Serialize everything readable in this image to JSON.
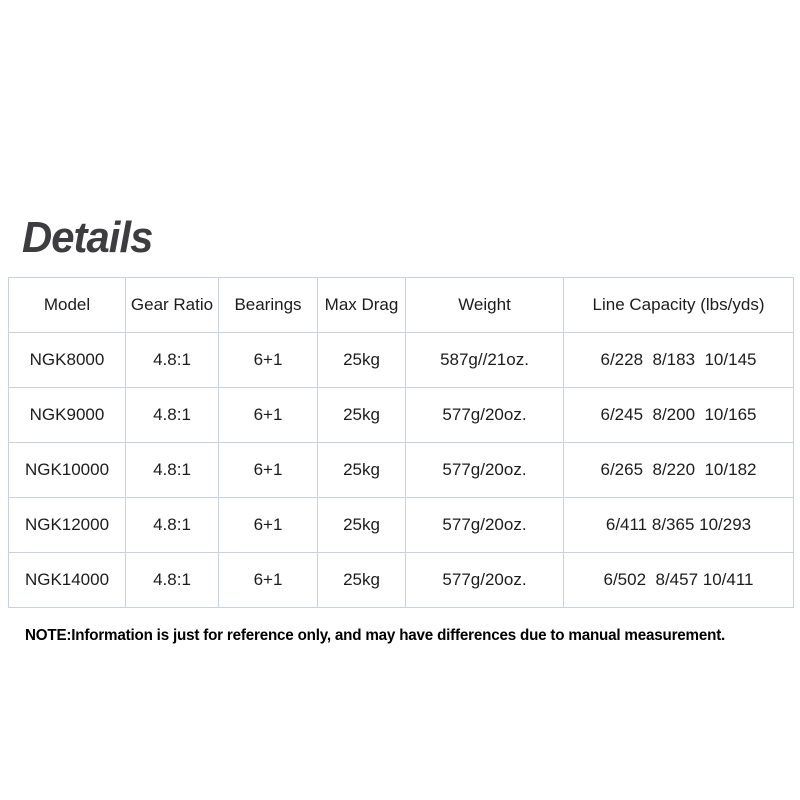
{
  "page": {
    "title": "Details",
    "note": "NOTE:Information is just for reference only, and may have differences due to manual measurement."
  },
  "table": {
    "border_color": "#c9d0e2",
    "columns": [
      "Model",
      "Gear Ratio",
      "Bearings",
      "Max Drag",
      "Weight",
      "Line Capacity (lbs/yds)"
    ],
    "rows": [
      [
        "NGK8000",
        "4.8:1",
        "6+1",
        "25kg",
        "587g//21oz.",
        "6/228  8/183  10/145"
      ],
      [
        "NGK9000",
        "4.8:1",
        "6+1",
        "25kg",
        "577g/20oz.",
        "6/245  8/200  10/165"
      ],
      [
        "NGK10000",
        "4.8:1",
        "6+1",
        "25kg",
        "577g/20oz.",
        "6/265  8/220  10/182"
      ],
      [
        "NGK12000",
        "4.8:1",
        "6+1",
        "25kg",
        "577g/20oz.",
        "6/411 8/365 10/293"
      ],
      [
        "NGK14000",
        "4.8:1",
        "6+1",
        "25kg",
        "577g/20oz.",
        "6/502  8/457 10/411"
      ]
    ]
  }
}
